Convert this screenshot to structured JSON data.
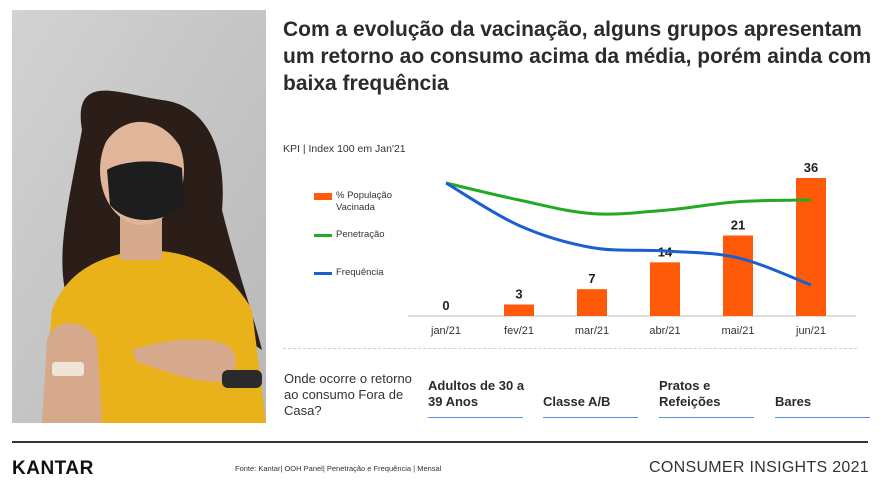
{
  "title": "Com a evolução da vacinação, alguns grupos apresentam um retorno ao consumo acima da média, porém ainda com baixa frequência",
  "chart_data": {
    "type": "bar",
    "subtitle": "KPI | Index 100 em Jan'21",
    "categories": [
      "jan/21",
      "fev/21",
      "mar/21",
      "abr/21",
      "mai/21",
      "jun/21"
    ],
    "series": [
      {
        "name": "% População Vacinada",
        "type": "bar",
        "color": "#ff5a0a",
        "values": [
          0,
          3,
          7,
          14,
          21,
          36
        ]
      },
      {
        "name": "Penetração",
        "type": "line",
        "color": "#22aa22",
        "values": [
          100,
          90,
          82,
          84,
          89,
          90
        ]
      },
      {
        "name": "Frequência",
        "type": "line",
        "color": "#1a5fd0",
        "values": [
          100,
          75,
          62,
          60,
          56,
          40
        ]
      }
    ],
    "legend_position": "left",
    "grid": false
  },
  "question": "Onde ocorre o retorno ao consumo Fora de Casa?",
  "groups": [
    "Adultos de 30 a 39 Anos",
    "Classe A/B",
    "Pratos e Refeições",
    "Bares"
  ],
  "footer": {
    "logo": "KANTAR",
    "source": "Fonte: Kantar| OOH Panel| Penetração e Frequência | Mensal",
    "brand": "CONSUMER INSIGHTS 2021"
  },
  "colors": {
    "accent": "#ff5a0a",
    "line_blue": "#5b8fd6"
  }
}
